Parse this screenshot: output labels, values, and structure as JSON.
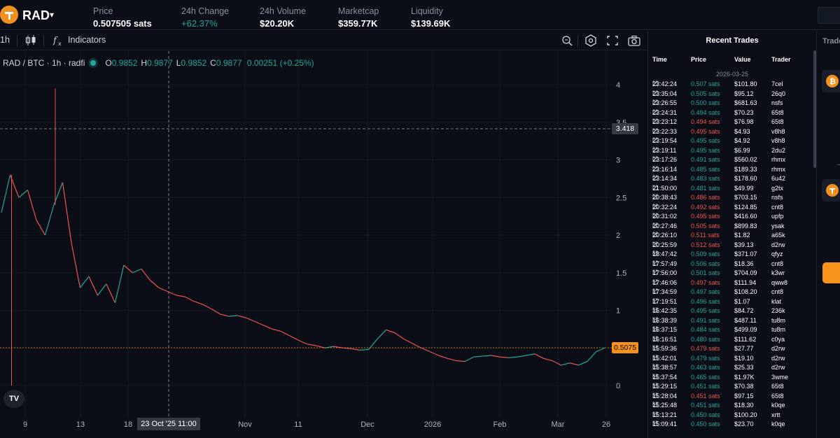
{
  "header": {
    "ticker": "RAD",
    "stats": [
      {
        "label": "Price",
        "value": "0.507505 sats",
        "tone": "normal"
      },
      {
        "label": "24h Change",
        "value": "+62.37%",
        "tone": "green"
      },
      {
        "label": "24h Volume",
        "value": "$20.20K",
        "tone": "normal"
      },
      {
        "label": "Marketcap",
        "value": "$359.77K",
        "tone": "normal"
      },
      {
        "label": "Liquidity",
        "value": "$139.69K",
        "tone": "normal"
      }
    ]
  },
  "toolbar": {
    "interval": "1h",
    "indicators_label": "Indicators"
  },
  "legend": {
    "symbol": "RAD / BTC · 1h · radfi",
    "open_key": "O",
    "open": "0.9852",
    "high_key": "H",
    "high": "0.9877",
    "low_key": "L",
    "low": "0.9852",
    "close_key": "C",
    "close": "0.9877",
    "change": "0.00251 (+0.25%)"
  },
  "chart_data": {
    "type": "line",
    "y_ticks": [
      "4",
      "3.5",
      "3",
      "2.5",
      "2",
      "1.5",
      "1",
      "0.5",
      "0"
    ],
    "x_ticks": [
      "9",
      "13",
      "18",
      "23 Oct '25",
      "11:00",
      "Nov",
      "11",
      "Dec",
      "2026",
      "Feb",
      "Mar",
      "26"
    ],
    "ylim": [
      0,
      4
    ],
    "crosshair_price": "3.418",
    "last_price": "0.5075",
    "crosshair_time": "23 Oct '25   11:00",
    "series": [
      {
        "values": [
          2.3,
          2.8,
          2.5,
          2.6,
          2.2,
          2.0,
          2.4,
          2.7,
          1.9,
          1.3,
          1.45,
          1.2,
          1.35,
          1.1,
          1.6,
          1.5,
          1.55,
          1.4,
          1.3,
          1.25,
          1.2,
          1.18,
          1.12,
          1.08,
          1.02,
          0.95,
          0.92,
          0.93,
          0.9,
          0.85,
          0.8,
          0.75,
          0.72,
          0.66,
          0.6,
          0.55,
          0.53,
          0.5,
          0.52,
          0.5,
          0.49,
          0.47,
          0.48,
          0.62,
          0.74,
          0.7,
          0.62,
          0.56,
          0.5,
          0.45,
          0.4,
          0.36,
          0.33,
          0.32,
          0.38,
          0.39,
          0.4,
          0.38,
          0.37,
          0.38,
          0.4,
          0.42,
          0.36,
          0.33,
          0.27,
          0.3,
          0.27,
          0.32,
          0.45,
          0.5
        ]
      }
    ],
    "spikes": [
      {
        "x_index": 1,
        "value": 0
      },
      {
        "x_index": 6,
        "value": 3.95
      }
    ]
  },
  "trades": {
    "title": "Recent Trades",
    "columns": [
      "Time",
      "Price",
      "Value",
      "Trader"
    ],
    "date": "2026-03-25",
    "rows": [
      {
        "time": "23:42:24",
        "price": "0.507 sats",
        "dir": "up",
        "value": "$101.80",
        "trader": "7cel"
      },
      {
        "time": "23:35:04",
        "price": "0.505 sats",
        "dir": "up",
        "value": "$95.12",
        "trader": "26q0"
      },
      {
        "time": "23:26:55",
        "price": "0.500 sats",
        "dir": "up",
        "value": "$681.63",
        "trader": "nsfs"
      },
      {
        "time": "23:24:31",
        "price": "0.494 sats",
        "dir": "up",
        "value": "$70.23",
        "trader": "65t8"
      },
      {
        "time": "23:23:12",
        "price": "0.494 sats",
        "dir": "down",
        "value": "$76.98",
        "trader": "65t8"
      },
      {
        "time": "23:22:33",
        "price": "0.495 sats",
        "dir": "down",
        "value": "$4.93",
        "trader": "v8h8"
      },
      {
        "time": "23:19:54",
        "price": "0.495 sats",
        "dir": "up",
        "value": "$4.92",
        "trader": "v8h8"
      },
      {
        "time": "23:19:11",
        "price": "0.495 sats",
        "dir": "up",
        "value": "$6.99",
        "trader": "2du2"
      },
      {
        "time": "23:17:26",
        "price": "0.491 sats",
        "dir": "up",
        "value": "$560.02",
        "trader": "rhmx"
      },
      {
        "time": "23:16:14",
        "price": "0.485 sats",
        "dir": "up",
        "value": "$189.33",
        "trader": "rhmx"
      },
      {
        "time": "23:14:34",
        "price": "0.483 sats",
        "dir": "up",
        "value": "$178.60",
        "trader": "6u42"
      },
      {
        "time": "21:50:00",
        "price": "0.481 sats",
        "dir": "up",
        "value": "$49.99",
        "trader": "g2tx"
      },
      {
        "time": "20:38:43",
        "price": "0.486 sats",
        "dir": "down",
        "value": "$703.15",
        "trader": "nsfs"
      },
      {
        "time": "20:32:24",
        "price": "0.492 sats",
        "dir": "down",
        "value": "$124.85",
        "trader": "cnt8"
      },
      {
        "time": "20:31:02",
        "price": "0.495 sats",
        "dir": "down",
        "value": "$416.60",
        "trader": "upfp"
      },
      {
        "time": "20:27:46",
        "price": "0.505 sats",
        "dir": "down",
        "value": "$899.83",
        "trader": "ysak"
      },
      {
        "time": "20:26:10",
        "price": "0.511 sats",
        "dir": "down",
        "value": "$1.82",
        "trader": "a65k"
      },
      {
        "time": "20:25:59",
        "price": "0.512 sats",
        "dir": "down",
        "value": "$39.13",
        "trader": "d2rw"
      },
      {
        "time": "18:47:42",
        "price": "0.509 sats",
        "dir": "up",
        "value": "$371.07",
        "trader": "qfyz"
      },
      {
        "time": "17:57:49",
        "price": "0.506 sats",
        "dir": "up",
        "value": "$18.36",
        "trader": "cnt8"
      },
      {
        "time": "17:56:00",
        "price": "0.501 sats",
        "dir": "up",
        "value": "$704.09",
        "trader": "k3wr"
      },
      {
        "time": "17:46:06",
        "price": "0.497 sats",
        "dir": "down",
        "value": "$111.94",
        "trader": "qww8"
      },
      {
        "time": "17:34:59",
        "price": "0.497 sats",
        "dir": "up",
        "value": "$108.20",
        "trader": "cnt8"
      },
      {
        "time": "17:19:51",
        "price": "0.496 sats",
        "dir": "up",
        "value": "$1.07",
        "trader": "klat"
      },
      {
        "time": "16:42:35",
        "price": "0.495 sats",
        "dir": "up",
        "value": "$84.72",
        "trader": "236k"
      },
      {
        "time": "16:38:39",
        "price": "0.491 sats",
        "dir": "up",
        "value": "$487.11",
        "trader": "tu8m"
      },
      {
        "time": "16:37:15",
        "price": "0.484 sats",
        "dir": "up",
        "value": "$499.09",
        "trader": "tu8m"
      },
      {
        "time": "16:16:51",
        "price": "0.480 sats",
        "dir": "up",
        "value": "$111.62",
        "trader": "c0ya"
      },
      {
        "time": "15:59:36",
        "price": "0.479 sats",
        "dir": "down",
        "value": "$27.77",
        "trader": "d2rw"
      },
      {
        "time": "15:42:01",
        "price": "0.479 sats",
        "dir": "up",
        "value": "$19.10",
        "trader": "d2rw"
      },
      {
        "time": "15:38:57",
        "price": "0.463 sats",
        "dir": "up",
        "value": "$25.33",
        "trader": "d2rw"
      },
      {
        "time": "15:37:54",
        "price": "0.465 sats",
        "dir": "up",
        "value": "$1.97K",
        "trader": "3wme"
      },
      {
        "time": "15:29:15",
        "price": "0.451 sats",
        "dir": "up",
        "value": "$70.38",
        "trader": "65t8"
      },
      {
        "time": "15:28:04",
        "price": "0.451 sats",
        "dir": "down",
        "value": "$97.15",
        "trader": "65t8"
      },
      {
        "time": "15:25:48",
        "price": "0.451 sats",
        "dir": "up",
        "value": "$18.30",
        "trader": "k0qe"
      },
      {
        "time": "15:13:21",
        "price": "0.450 sats",
        "dir": "up",
        "value": "$100.20",
        "trader": "xrtt"
      },
      {
        "time": "15:09:41",
        "price": "0.450 sats",
        "dir": "up",
        "value": "$23.70",
        "trader": "k0qe"
      }
    ]
  },
  "right_panel": {
    "label": "Trade"
  },
  "colors": {
    "up": "#26a69a",
    "down": "#ef5350",
    "accent": "#f7931a",
    "background": "#0b0e17"
  }
}
